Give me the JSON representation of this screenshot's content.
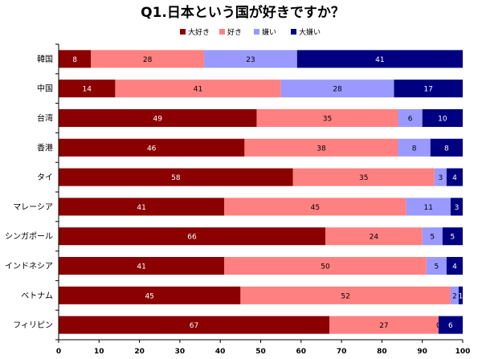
{
  "chart_data": {
    "type": "bar",
    "orientation": "horizontal",
    "stacked": true,
    "title": "Q1.日本という国が好きですか？",
    "categories": [
      "韓国",
      "中国",
      "台湾",
      "香港",
      "タイ",
      "マレーシア",
      "シンガポール",
      "インドネシア",
      "ベトナム",
      "フィリピン"
    ],
    "series": [
      {
        "name": "大好き",
        "color": "#8B0000",
        "label_color": "#ffffff",
        "values": [
          8,
          14,
          49,
          46,
          58,
          41,
          66,
          41,
          45,
          67
        ]
      },
      {
        "name": "好き",
        "color": "#FF8080",
        "label_color": "#000000",
        "values": [
          28,
          41,
          35,
          38,
          35,
          45,
          24,
          50,
          52,
          27
        ]
      },
      {
        "name": "嫌い",
        "color": "#9999FF",
        "label_color": "#000000",
        "values": [
          23,
          28,
          6,
          8,
          3,
          11,
          5,
          5,
          2,
          0
        ]
      },
      {
        "name": "大嫌い",
        "color": "#000080",
        "label_color": "#ffffff",
        "values": [
          41,
          17,
          10,
          8,
          4,
          3,
          5,
          4,
          1,
          6
        ]
      }
    ],
    "xlim": [
      0,
      100
    ],
    "xticks": [
      0,
      10,
      20,
      30,
      40,
      50,
      60,
      70,
      80,
      90,
      100
    ],
    "legend_position": "top",
    "grid": false
  }
}
